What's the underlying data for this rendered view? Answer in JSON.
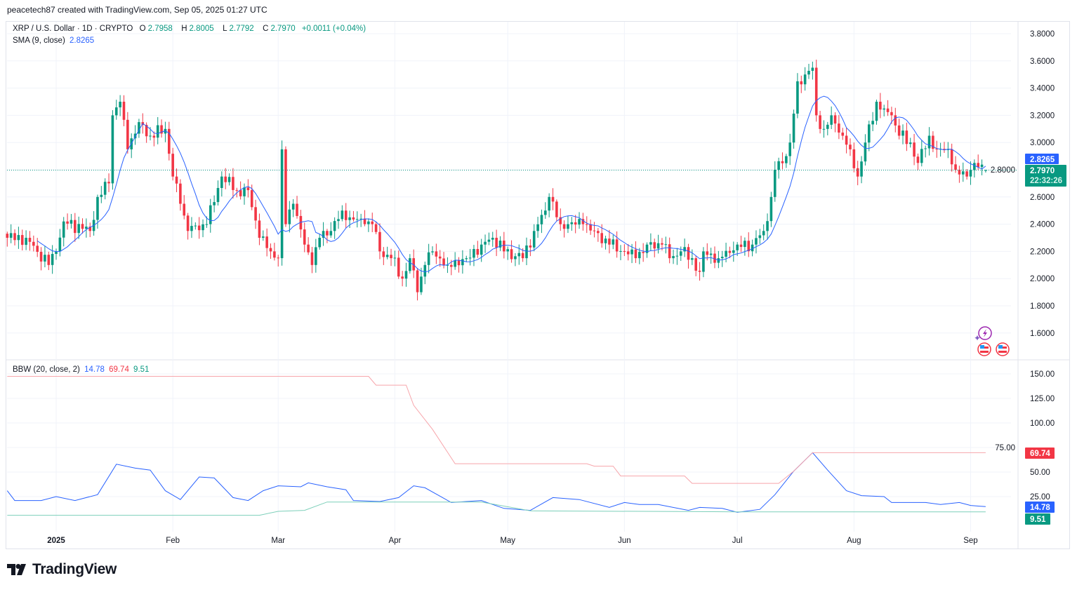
{
  "credit": "peacetech87 created with TradingView.com, Sep 05, 2025 01:27 UTC",
  "legend": {
    "symbol": "XRP / U.S. Dollar · 1D · CRYPTO",
    "o_label": "O",
    "o": "2.7958",
    "h_label": "H",
    "h": "2.8005",
    "l_label": "L",
    "l": "2.7792",
    "c_label": "C",
    "c": "2.7970",
    "change": "+0.0011 (+0.04%)",
    "sma_label": "SMA (9, close)",
    "sma_value": "2.8265",
    "bbw_label": "BBW (20, close, 2)",
    "bbw_value": "14.78",
    "bbw_high": "69.74",
    "bbw_low": "9.51"
  },
  "badges": {
    "sma": "2.8265",
    "price": "2.7970",
    "countdown": "22:32:26",
    "bbw_high": "69.74",
    "bbw": "14.78",
    "bbw_low": "9.51"
  },
  "colors": {
    "up": "#089981",
    "down": "#f23645",
    "sma": "#2962ff",
    "bbw": "#2962ff",
    "bbw_high": "#f7a5ab",
    "bbw_low": "#7ccfb9"
  },
  "icons": [
    "lightning-event-icon",
    "us-flag-event-icon",
    "us-flag-event-icon"
  ],
  "brand": "TradingView",
  "chart_data": [
    {
      "type": "candlestick",
      "title": "XRP / U.S. Dollar · 1D · CRYPTO",
      "ylim": [
        1.5,
        3.85
      ],
      "yticks": [
        "1.6000",
        "1.8000",
        "2.0000",
        "2.2000",
        "2.4000",
        "2.6000",
        "2.8000",
        "3.0000",
        "3.2000",
        "3.4000",
        "3.6000",
        "3.8000"
      ],
      "xticks": [
        "2025",
        "Feb",
        "Mar",
        "Apr",
        "May",
        "Jun",
        "Jul",
        "Aug",
        "Sep"
      ],
      "grid": true,
      "last_candle": {
        "date": "2025-09-05",
        "open": 2.7958,
        "high": 2.8005,
        "low": 2.7792,
        "close": 2.797
      },
      "close_points": [
        [
          "2024-12-19",
          2.3
        ],
        [
          "2024-12-24",
          2.3
        ],
        [
          "2024-12-30",
          2.1
        ],
        [
          "2025-01-01",
          2.2
        ],
        [
          "2025-01-03",
          2.42
        ],
        [
          "2025-01-10",
          2.35
        ],
        [
          "2025-01-12",
          2.6
        ],
        [
          "2025-01-15",
          2.7
        ],
        [
          "2025-01-16",
          3.2
        ],
        [
          "2025-01-18",
          3.3
        ],
        [
          "2025-01-20",
          2.95
        ],
        [
          "2025-01-23",
          3.15
        ],
        [
          "2025-01-26",
          3.05
        ],
        [
          "2025-01-30",
          3.1
        ],
        [
          "2025-02-01",
          2.75
        ],
        [
          "2025-02-03",
          2.55
        ],
        [
          "2025-02-05",
          2.35
        ],
        [
          "2025-02-10",
          2.4
        ],
        [
          "2025-02-14",
          2.75
        ],
        [
          "2025-02-18",
          2.65
        ],
        [
          "2025-02-21",
          2.65
        ],
        [
          "2025-02-24",
          2.3
        ],
        [
          "2025-02-27",
          2.2
        ],
        [
          "2025-03-01",
          2.15
        ],
        [
          "2025-03-02",
          2.95
        ],
        [
          "2025-03-03",
          2.4
        ],
        [
          "2025-03-05",
          2.55
        ],
        [
          "2025-03-08",
          2.25
        ],
        [
          "2025-03-10",
          2.1
        ],
        [
          "2025-03-12",
          2.3
        ],
        [
          "2025-03-15",
          2.35
        ],
        [
          "2025-03-18",
          2.5
        ],
        [
          "2025-03-20",
          2.45
        ],
        [
          "2025-03-24",
          2.4
        ],
        [
          "2025-03-26",
          2.4
        ],
        [
          "2025-03-28",
          2.2
        ],
        [
          "2025-03-31",
          2.15
        ],
        [
          "2025-04-03",
          2.0
        ],
        [
          "2025-04-05",
          2.15
        ],
        [
          "2025-04-07",
          1.9
        ],
        [
          "2025-04-09",
          2.1
        ],
        [
          "2025-04-11",
          2.2
        ],
        [
          "2025-04-15",
          2.1
        ],
        [
          "2025-04-20",
          2.15
        ],
        [
          "2025-04-24",
          2.25
        ],
        [
          "2025-04-27",
          2.3
        ],
        [
          "2025-04-30",
          2.2
        ],
        [
          "2025-05-05",
          2.15
        ],
        [
          "2025-05-08",
          2.35
        ],
        [
          "2025-05-11",
          2.5
        ],
        [
          "2025-05-12",
          2.6
        ],
        [
          "2025-05-15",
          2.4
        ],
        [
          "2025-05-17",
          2.4
        ],
        [
          "2025-05-21",
          2.4
        ],
        [
          "2025-05-24",
          2.35
        ],
        [
          "2025-05-28",
          2.25
        ],
        [
          "2025-06-01",
          2.2
        ],
        [
          "2025-06-04",
          2.15
        ],
        [
          "2025-06-07",
          2.25
        ],
        [
          "2025-06-11",
          2.25
        ],
        [
          "2025-06-13",
          2.15
        ],
        [
          "2025-06-16",
          2.2
        ],
        [
          "2025-06-19",
          2.15
        ],
        [
          "2025-06-21",
          2.05
        ],
        [
          "2025-06-22",
          2.2
        ],
        [
          "2025-06-26",
          2.15
        ],
        [
          "2025-07-01",
          2.25
        ],
        [
          "2025-07-05",
          2.25
        ],
        [
          "2025-07-08",
          2.35
        ],
        [
          "2025-07-10",
          2.6
        ],
        [
          "2025-07-11",
          2.8
        ],
        [
          "2025-07-14",
          2.9
        ],
        [
          "2025-07-15",
          3.0
        ],
        [
          "2025-07-17",
          3.45
        ],
        [
          "2025-07-19",
          3.5
        ],
        [
          "2025-07-21",
          3.55
        ],
        [
          "2025-07-22",
          3.2
        ],
        [
          "2025-07-24",
          3.1
        ],
        [
          "2025-07-26",
          3.2
        ],
        [
          "2025-07-29",
          3.05
        ],
        [
          "2025-07-31",
          2.95
        ],
        [
          "2025-08-02",
          2.75
        ],
        [
          "2025-08-04",
          3.0
        ],
        [
          "2025-08-07",
          3.3
        ],
        [
          "2025-08-09",
          3.25
        ],
        [
          "2025-08-11",
          3.2
        ],
        [
          "2025-08-13",
          3.05
        ],
        [
          "2025-08-16",
          3.0
        ],
        [
          "2025-08-18",
          2.85
        ],
        [
          "2025-08-21",
          3.05
        ],
        [
          "2025-08-23",
          2.95
        ],
        [
          "2025-08-26",
          2.95
        ],
        [
          "2025-08-28",
          2.8
        ],
        [
          "2025-08-31",
          2.75
        ],
        [
          "2025-09-02",
          2.85
        ],
        [
          "2025-09-05",
          2.797
        ]
      ],
      "overlay": {
        "name": "SMA (9, close)",
        "last": 2.8265
      }
    },
    {
      "type": "line",
      "title": "BBW (20, close, 2)",
      "ylim": [
        0,
        160
      ],
      "yticks": [
        "25.00",
        "50.00",
        "75.00",
        "100.00",
        "125.00",
        "150.00"
      ],
      "series": [
        {
          "key": "bbw",
          "points": [
            [
              "2024-12-19",
              31
            ],
            [
              "2024-12-21",
              21
            ],
            [
              "2024-12-28",
              21
            ],
            [
              "2025-01-01",
              25
            ],
            [
              "2025-01-06",
              21
            ],
            [
              "2025-01-12",
              27
            ],
            [
              "2025-01-17",
              58
            ],
            [
              "2025-01-22",
              54
            ],
            [
              "2025-01-26",
              52
            ],
            [
              "2025-01-30",
              31
            ],
            [
              "2025-02-03",
              22
            ],
            [
              "2025-02-08",
              45
            ],
            [
              "2025-02-12",
              44
            ],
            [
              "2025-02-17",
              24
            ],
            [
              "2025-02-21",
              21
            ],
            [
              "2025-02-25",
              31
            ],
            [
              "2025-03-01",
              36
            ],
            [
              "2025-03-07",
              35
            ],
            [
              "2025-03-09",
              39
            ],
            [
              "2025-03-14",
              35
            ],
            [
              "2025-03-19",
              32
            ],
            [
              "2025-03-21",
              21
            ],
            [
              "2025-03-28",
              20
            ],
            [
              "2025-04-02",
              24
            ],
            [
              "2025-04-06",
              36
            ],
            [
              "2025-04-09",
              34
            ],
            [
              "2025-04-16",
              19
            ],
            [
              "2025-04-24",
              21
            ],
            [
              "2025-04-30",
              13
            ],
            [
              "2025-05-07",
              11
            ],
            [
              "2025-05-13",
              24
            ],
            [
              "2025-05-20",
              22
            ],
            [
              "2025-05-28",
              14
            ],
            [
              "2025-06-01",
              19
            ],
            [
              "2025-06-05",
              17
            ],
            [
              "2025-06-10",
              17
            ],
            [
              "2025-06-18",
              11
            ],
            [
              "2025-06-21",
              14
            ],
            [
              "2025-06-27",
              13
            ],
            [
              "2025-07-01",
              9
            ],
            [
              "2025-07-07",
              12
            ],
            [
              "2025-07-11",
              27
            ],
            [
              "2025-07-16",
              51
            ],
            [
              "2025-07-21",
              69.74
            ],
            [
              "2025-07-25",
              52
            ],
            [
              "2025-07-30",
              31
            ],
            [
              "2025-08-03",
              26
            ],
            [
              "2025-08-09",
              25
            ],
            [
              "2025-08-11",
              19
            ],
            [
              "2025-08-20",
              19
            ],
            [
              "2025-08-24",
              17
            ],
            [
              "2025-08-29",
              19
            ],
            [
              "2025-09-01",
              16
            ],
            [
              "2025-09-05",
              14.78
            ]
          ]
        },
        {
          "key": "bbw_high",
          "points": [
            [
              "2024-12-19",
              147.5
            ],
            [
              "2025-03-25",
              147.5
            ],
            [
              "2025-03-27",
              138.5
            ],
            [
              "2025-04-04",
              138.5
            ],
            [
              "2025-04-06",
              118
            ],
            [
              "2025-04-11",
              93.5
            ],
            [
              "2025-04-17",
              58.5
            ],
            [
              "2025-05-22",
              58.5
            ],
            [
              "2025-05-24",
              56
            ],
            [
              "2025-05-29",
              56
            ],
            [
              "2025-05-31",
              46
            ],
            [
              "2025-06-17",
              46
            ],
            [
              "2025-06-19",
              38.5
            ],
            [
              "2025-07-12",
              38.5
            ],
            [
              "2025-07-16",
              51
            ],
            [
              "2025-07-21",
              69.74
            ],
            [
              "2025-09-05",
              69.74
            ]
          ]
        },
        {
          "key": "bbw_low",
          "points": [
            [
              "2024-12-19",
              6
            ],
            [
              "2025-02-24",
              6
            ],
            [
              "2025-03-01",
              10
            ],
            [
              "2025-03-08",
              11
            ],
            [
              "2025-03-14",
              19.5
            ],
            [
              "2025-04-24",
              19.5
            ],
            [
              "2025-05-07",
              10.5
            ],
            [
              "2025-07-01",
              9.51
            ],
            [
              "2025-09-05",
              9.51
            ]
          ]
        }
      ]
    }
  ]
}
